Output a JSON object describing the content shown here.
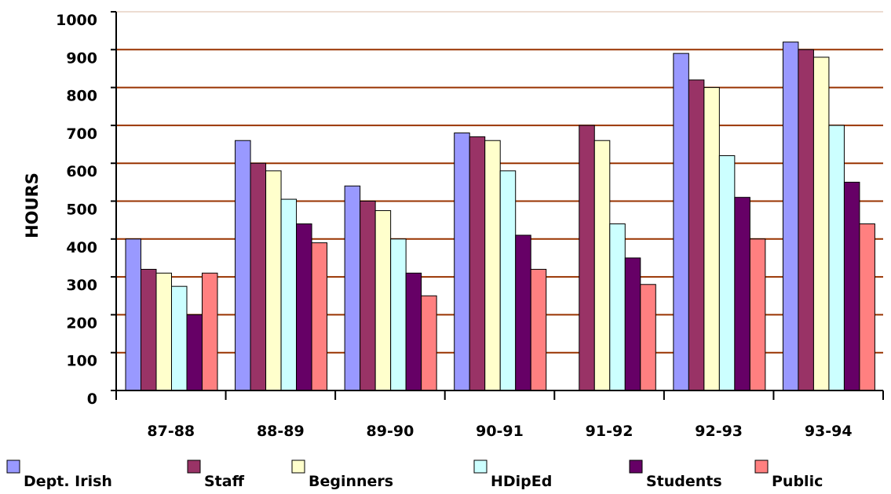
{
  "chart_data": {
    "type": "bar",
    "title": "",
    "xlabel": "",
    "ylabel": "HOURS",
    "ylim": [
      0,
      1000
    ],
    "yticks": [
      "0",
      "100",
      "200",
      "300",
      "400",
      "500",
      "600",
      "700",
      "800",
      "900",
      "1000"
    ],
    "categories": [
      "87-88",
      "88-89",
      "89-90",
      "90-91",
      "91-92",
      "92-93",
      "93-94"
    ],
    "grid": true,
    "legend_position": "bottom",
    "series": [
      {
        "name": "Dept. Irish",
        "color": "#9999ff",
        "values": [
          400,
          660,
          540,
          680,
          0,
          890,
          920
        ]
      },
      {
        "name": "Staff",
        "color": "#993366",
        "values": [
          320,
          600,
          500,
          670,
          700,
          820,
          900
        ]
      },
      {
        "name": "Beginners",
        "color": "#ffffcc",
        "values": [
          310,
          580,
          475,
          660,
          660,
          800,
          880
        ]
      },
      {
        "name": "HDipEd",
        "color": "#ccffff",
        "values": [
          275,
          505,
          400,
          580,
          440,
          620,
          700
        ]
      },
      {
        "name": "Students",
        "color": "#660066",
        "values": [
          200,
          440,
          310,
          410,
          350,
          510,
          550
        ]
      },
      {
        "name": "Public",
        "color": "#ff8080",
        "values": [
          310,
          390,
          250,
          320,
          280,
          400,
          440
        ]
      }
    ],
    "gridline_color": "#993300"
  }
}
